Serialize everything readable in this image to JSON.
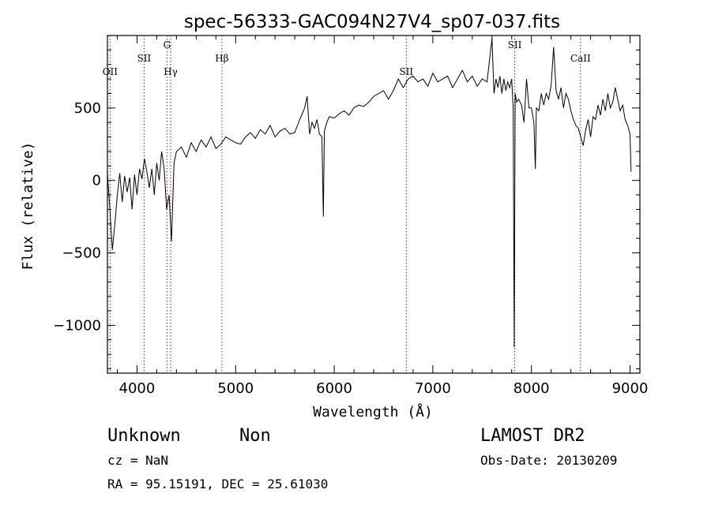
{
  "chart_data": {
    "type": "line",
    "title": "spec-56333-GAC094N27V4_sp07-037.fits",
    "xlabel": "Wavelength (Å)",
    "ylabel": "Flux (relative)",
    "xlim": [
      3700,
      9100
    ],
    "ylim": [
      -1330,
      1000
    ],
    "xticks": [
      4000,
      5000,
      6000,
      7000,
      8000,
      9000
    ],
    "xtick_labels": [
      "4000",
      "5000",
      "6000",
      "7000",
      "8000",
      "9000"
    ],
    "yticks": [
      -1000,
      -500,
      0,
      500
    ],
    "ytick_labels": [
      "−1000",
      "−500",
      "0",
      "500"
    ],
    "grid": false,
    "legend": "none",
    "line_color": "#000000",
    "marker_color": "#8b1a1a",
    "markers": [
      {
        "x": 3727,
        "label": "OII",
        "level": 0
      },
      {
        "x": 4072,
        "label": "SII",
        "level": 1
      },
      {
        "x": 4304,
        "label": "G",
        "level": 2
      },
      {
        "x": 4341,
        "label": "Hγ",
        "level": 0
      },
      {
        "x": 4861,
        "label": "Hβ",
        "level": 1
      },
      {
        "x": 6731,
        "label": "SII",
        "level": 0
      },
      {
        "x": 7830,
        "label": "SII",
        "level": 2
      },
      {
        "x": 8498,
        "label": "CaII",
        "level": 1
      }
    ],
    "series": [
      {
        "x": [
          3700,
          3725,
          3750,
          3775,
          3800,
          3825,
          3850,
          3875,
          3900,
          3925,
          3950,
          3975,
          4000,
          4025,
          4050,
          4075,
          4100,
          4125,
          4150,
          4175,
          4200,
          4225,
          4250,
          4275,
          4300,
          4325,
          4350,
          4375,
          4400,
          4450,
          4500,
          4550,
          4600,
          4650,
          4700,
          4750,
          4800,
          4850,
          4900,
          4950,
          5000,
          5050,
          5100,
          5150,
          5200,
          5250,
          5300,
          5350,
          5400,
          5450,
          5500,
          5550,
          5600,
          5650,
          5700,
          5725,
          5750,
          5775,
          5800,
          5825,
          5850,
          5875,
          5890,
          5900,
          5925,
          5950,
          6000,
          6050,
          6100,
          6150,
          6200,
          6250,
          6300,
          6350,
          6400,
          6450,
          6500,
          6550,
          6600,
          6650,
          6700,
          6750,
          6800,
          6850,
          6900,
          6950,
          7000,
          7050,
          7100,
          7150,
          7200,
          7250,
          7300,
          7350,
          7400,
          7450,
          7500,
          7550,
          7600,
          7620,
          7640,
          7660,
          7680,
          7700,
          7720,
          7740,
          7760,
          7780,
          7800,
          7815,
          7825,
          7835,
          7850,
          7870,
          7900,
          7925,
          7950,
          7975,
          8000,
          8025,
          8040,
          8050,
          8075,
          8100,
          8125,
          8150,
          8175,
          8200,
          8225,
          8250,
          8275,
          8300,
          8325,
          8350,
          8375,
          8400,
          8425,
          8450,
          8475,
          8500,
          8525,
          8550,
          8575,
          8600,
          8625,
          8650,
          8675,
          8700,
          8725,
          8750,
          8775,
          8800,
          8825,
          8850,
          8875,
          8900,
          8925,
          8950,
          8975,
          9000,
          9010
        ],
        "y": [
          50,
          -200,
          -480,
          -300,
          -100,
          50,
          -150,
          30,
          -80,
          20,
          -200,
          40,
          -100,
          80,
          10,
          150,
          60,
          -50,
          80,
          -100,
          120,
          0,
          200,
          80,
          -200,
          -100,
          -420,
          120,
          200,
          230,
          160,
          260,
          200,
          280,
          230,
          300,
          220,
          250,
          300,
          280,
          260,
          250,
          300,
          330,
          290,
          350,
          320,
          380,
          300,
          340,
          360,
          320,
          330,
          420,
          500,
          580,
          320,
          400,
          360,
          420,
          320,
          300,
          -250,
          340,
          400,
          440,
          430,
          460,
          480,
          450,
          500,
          520,
          510,
          540,
          580,
          600,
          620,
          560,
          620,
          700,
          640,
          700,
          720,
          680,
          700,
          650,
          740,
          680,
          700,
          720,
          640,
          700,
          760,
          680,
          720,
          650,
          700,
          680,
          980,
          600,
          700,
          640,
          720,
          600,
          700,
          620,
          680,
          640,
          700,
          500,
          -1150,
          600,
          540,
          560,
          520,
          400,
          700,
          500,
          500,
          400,
          80,
          500,
          480,
          600,
          520,
          600,
          560,
          660,
          920,
          620,
          560,
          640,
          500,
          600,
          560,
          480,
          420,
          380,
          360,
          300,
          240,
          350,
          420,
          300,
          440,
          420,
          520,
          450,
          560,
          480,
          600,
          500,
          540,
          640,
          560,
          480,
          520,
          420,
          380,
          320,
          60
        ]
      }
    ],
    "annotations": {
      "class_line": [
        "Unknown",
        "Non"
      ],
      "survey": "LAMOST DR2",
      "cz": "cz = NaN",
      "obs_date": "Obs-Date: 20130209",
      "coords": "RA =  95.15191, DEC =  25.61030"
    }
  }
}
